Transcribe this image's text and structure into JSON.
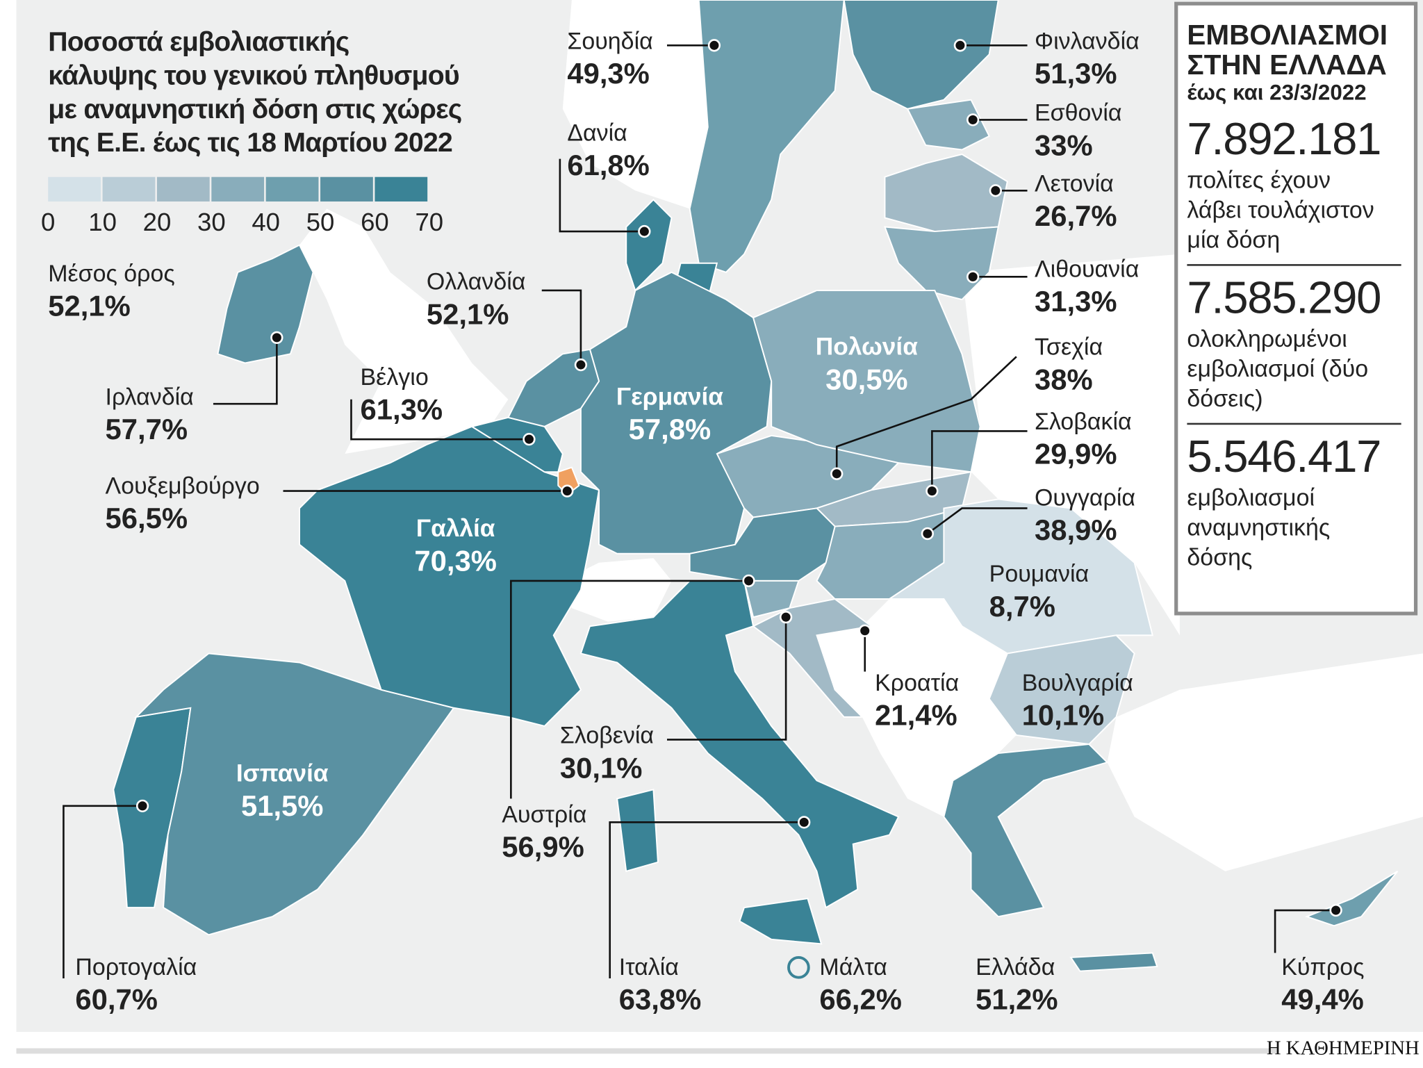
{
  "title": [
    "Ποσοστά εμβολιαστικής",
    "κάλυψης του γενικού πληθυσμού",
    "με αναμνηστική δόση στις χώρες",
    "της Ε.Ε. έως τις 18 Μαρτίου 2022"
  ],
  "legend": {
    "ticks": [
      "0",
      "10",
      "20",
      "30",
      "40",
      "50",
      "60",
      "70"
    ],
    "colors": [
      "#d4e1e8",
      "#bacdd7",
      "#a2bac6",
      "#89adbb",
      "#6e9fae",
      "#5a91a2",
      "#3a8396"
    ]
  },
  "average": {
    "name": "Μέσος όρος",
    "value": "52,1%"
  },
  "countries": [
    {
      "name": "Σουηδία",
      "value": "49,3%",
      "color": "#6e9fae"
    },
    {
      "name": "Δανία",
      "value": "61,8%",
      "color": "#3a8396"
    },
    {
      "name": "Φινλανδία",
      "value": "51,3%",
      "color": "#5a91a2"
    },
    {
      "name": "Εσθονία",
      "value": "33%",
      "color": "#89adbb"
    },
    {
      "name": "Λετονία",
      "value": "26,7%",
      "color": "#a2bac6"
    },
    {
      "name": "Λιθουανία",
      "value": "31,3%",
      "color": "#89adbb"
    },
    {
      "name": "Τσεχία",
      "value": "38%",
      "color": "#89adbb"
    },
    {
      "name": "Σλοβακία",
      "value": "29,9%",
      "color": "#a2bac6"
    },
    {
      "name": "Ουγγαρία",
      "value": "38,9%",
      "color": "#89adbb"
    },
    {
      "name": "Ρουμανία",
      "value": "8,7%",
      "color": "#d4e1e8"
    },
    {
      "name": "Βουλγαρία",
      "value": "10,1%",
      "color": "#bacdd7"
    },
    {
      "name": "Κροατία",
      "value": "21,4%",
      "color": "#a2bac6"
    },
    {
      "name": "Ελλάδα",
      "value": "51,2%",
      "color": "#5a91a2"
    },
    {
      "name": "Κύπρος",
      "value": "49,4%",
      "color": "#6e9fae"
    },
    {
      "name": "Μάλτα",
      "value": "66,2%",
      "color": "#3a8396"
    },
    {
      "name": "Ιταλία",
      "value": "63,8%",
      "color": "#3a8396"
    },
    {
      "name": "Αυστρία",
      "value": "56,9%",
      "color": "#5a91a2"
    },
    {
      "name": "Σλοβενία",
      "value": "30,1%",
      "color": "#89adbb"
    },
    {
      "name": "Πορτογαλία",
      "value": "60,7%",
      "color": "#3a8396"
    },
    {
      "name": "Ισπανία",
      "value": "51,5%",
      "color": "#5a91a2"
    },
    {
      "name": "Γαλλία",
      "value": "70,3%",
      "color": "#3a8396"
    },
    {
      "name": "Γερμανία",
      "value": "57,8%",
      "color": "#5a91a2"
    },
    {
      "name": "Πολωνία",
      "value": "30,5%",
      "color": "#89adbb"
    },
    {
      "name": "Λουξεμβούργο",
      "value": "56,5%",
      "color": "#f0a060"
    },
    {
      "name": "Βέλγιο",
      "value": "61,3%",
      "color": "#3a8396"
    },
    {
      "name": "Ολλανδία",
      "value": "52,1%",
      "color": "#5a91a2"
    },
    {
      "name": "Ιρλανδία",
      "value": "57,7%",
      "color": "#5a91a2"
    }
  ],
  "box": {
    "heading": [
      "ΕΜΒΟΛΙΑΣΜΟΙ",
      "ΣΤΗΝ ΕΛΛΑΔΑ"
    ],
    "date": "έως και 23/3/2022",
    "stats": [
      {
        "number": "7.892.181",
        "text": [
          "πολίτες έχουν",
          "λάβει τουλάχιστον",
          "μία δόση"
        ]
      },
      {
        "number": "7.585.290",
        "text": [
          "ολοκληρωμένοι",
          "εμβολιασμοί (δύο",
          "δόσεις)"
        ]
      },
      {
        "number": "5.546.417",
        "text": [
          "εμβολιασμοί",
          "αναμνηστικής",
          "δόσης"
        ]
      }
    ]
  },
  "logo": "Η ΚΑΘΗΜΕΡΙΝΗ"
}
